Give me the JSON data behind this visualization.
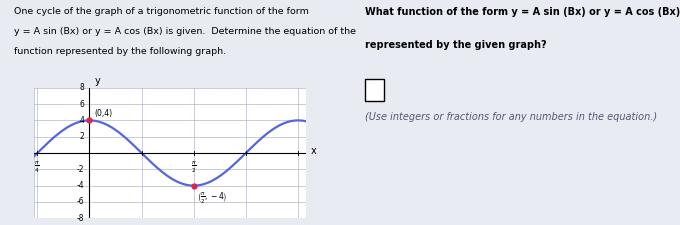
{
  "amplitude": 4,
  "B": 2,
  "y_min": -8,
  "y_max": 8,
  "y_ticks": [
    -8,
    -6,
    -4,
    -2,
    2,
    4,
    6,
    8
  ],
  "curve_color": "#5566dd",
  "point_color": "#dd2255",
  "grid_color": "#b0b8d0",
  "bg_color": "#e8ecf2",
  "white_panel": "#f0f2f5",
  "text_left_1": "One cycle of the graph of a trigonometric function of the form",
  "text_left_2": "y = A sin (Bx) or y = A cos (Bx) is given.  Determine the equation of the",
  "text_left_3": "function represented by the following graph.",
  "text_right_1": "What function of the form y = A sin (Bx) or y = A cos (Bx), B > 0 is",
  "text_right_2": "represented by the given graph?",
  "text_right_3": "(Use integers or fractions for any numbers in the equation.)"
}
